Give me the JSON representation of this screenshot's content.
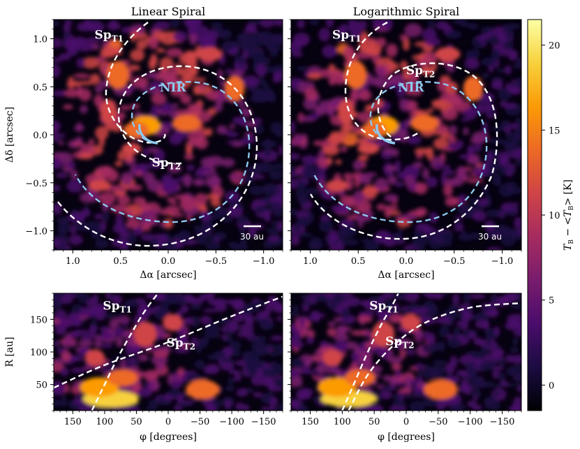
{
  "chart_data": [
    {
      "type": "heatmap",
      "title": "Linear Spiral",
      "xlabel": "Δα [arcsec]",
      "ylabel": "Δδ [arcsec]",
      "xlim": [
        1.2,
        -1.2
      ],
      "ylim": [
        -1.2,
        1.2
      ],
      "xticks": [
        "1.0",
        "0.5",
        "0.0",
        "−0.5",
        "−1.0"
      ],
      "xtick_values": [
        1.0,
        0.5,
        0.0,
        -0.5,
        -1.0
      ],
      "yticks": [
        "1.0",
        "0.5",
        "0.0",
        "−0.5",
        "−1.0"
      ],
      "ytick_values": [
        1.0,
        0.5,
        0.0,
        -0.5,
        -1.0
      ],
      "annotations": [
        {
          "text": "Sp",
          "sub": "T1",
          "x": 0.62,
          "y": 1.0,
          "color": "#ffffff"
        },
        {
          "text": "Sp",
          "sub": "T2",
          "x": 0.02,
          "y": -0.33,
          "color": "#ffffff"
        },
        {
          "text": "NIR",
          "sub": "",
          "x": -0.05,
          "y": 0.45,
          "color": "#8ec8ee"
        }
      ],
      "scale_bar": "30 au"
    },
    {
      "type": "heatmap",
      "title": "Logarithmic Spiral",
      "xlabel": "Δα [arcsec]",
      "xlim": [
        1.2,
        -1.2
      ],
      "ylim": [
        -1.2,
        1.2
      ],
      "xticks": [
        "1.0",
        "0.5",
        "0.0",
        "−0.5",
        "−1.0"
      ],
      "xtick_values": [
        1.0,
        0.5,
        0.0,
        -0.5,
        -1.0
      ],
      "annotations": [
        {
          "text": "Sp",
          "sub": "T1",
          "x": 0.62,
          "y": 1.0,
          "color": "#ffffff"
        },
        {
          "text": "Sp",
          "sub": "T2",
          "x": -0.15,
          "y": 0.63,
          "color": "#ffffff"
        },
        {
          "text": "NIR",
          "sub": "",
          "x": -0.05,
          "y": 0.45,
          "color": "#8ec8ee"
        }
      ],
      "scale_bar": "30 au"
    },
    {
      "type": "heatmap",
      "title": "",
      "xlabel": "φ [degrees]",
      "ylabel": "R [au]",
      "xlim": [
        180,
        -180
      ],
      "ylim": [
        10,
        190
      ],
      "xticks": [
        "150",
        "100",
        "50",
        "0",
        "−50",
        "−100",
        "−150"
      ],
      "xtick_values": [
        150,
        100,
        50,
        0,
        -50,
        -100,
        -150
      ],
      "yticks": [
        "50",
        "100",
        "150"
      ],
      "ytick_values": [
        50,
        100,
        150
      ],
      "annotations": [
        {
          "text": "Sp",
          "sub": "T1",
          "x": 80,
          "y": 165,
          "color": "#ffffff"
        },
        {
          "text": "Sp",
          "sub": "T2",
          "x": -20,
          "y": 108,
          "color": "#ffffff"
        }
      ],
      "curves": [
        {
          "name": "SpT1",
          "phi": [
            120,
            100,
            80,
            60,
            40,
            20,
            10
          ],
          "R": [
            10,
            50,
            90,
            125,
            158,
            185,
            195
          ]
        },
        {
          "name": "SpT2",
          "phi": [
            180,
            100,
            0,
            -100,
            -180
          ],
          "R": [
            45,
            80,
            115,
            155,
            185
          ]
        }
      ]
    },
    {
      "type": "heatmap",
      "title": "",
      "xlabel": "φ [degrees]",
      "xlim": [
        180,
        -180
      ],
      "ylim": [
        10,
        190
      ],
      "xticks": [
        "150",
        "100",
        "50",
        "0",
        "−50",
        "−100",
        "−150"
      ],
      "xtick_values": [
        150,
        100,
        50,
        0,
        -50,
        -100,
        -150
      ],
      "annotations": [
        {
          "text": "Sp",
          "sub": "T1",
          "x": 35,
          "y": 165,
          "color": "#ffffff"
        },
        {
          "text": "Sp",
          "sub": "T2",
          "x": 10,
          "y": 110,
          "color": "#ffffff"
        }
      ],
      "curves": [
        {
          "name": "SpT1",
          "phi": [
            100,
            80,
            60,
            40,
            20,
            10
          ],
          "R": [
            10,
            55,
            100,
            140,
            175,
            195
          ]
        },
        {
          "name": "SpT2",
          "phi": [
            90,
            60,
            20,
            -30,
            -100,
            -180
          ],
          "R": [
            10,
            65,
            110,
            145,
            168,
            175
          ]
        }
      ]
    }
  ],
  "colorbar": {
    "label": "T_B − <T_B> [K]",
    "label_parts": [
      "T",
      "B",
      " − <",
      "T",
      "B",
      "> [K]"
    ],
    "ticks": [
      "0",
      "5",
      "10",
      "15",
      "20"
    ],
    "tick_values": [
      0,
      5,
      10,
      15,
      20
    ],
    "range": [
      -1.5,
      21.5
    ],
    "colors": [
      "#000004",
      "#1b0c41",
      "#4a0c6b",
      "#781c6d",
      "#a52c60",
      "#cf4446",
      "#ed6925",
      "#fb9b06",
      "#f7d13d",
      "#fcffa4"
    ]
  },
  "colors": {
    "spiral": "#ffffff",
    "nir": "#8ec8ee",
    "background": "#0a0318"
  }
}
